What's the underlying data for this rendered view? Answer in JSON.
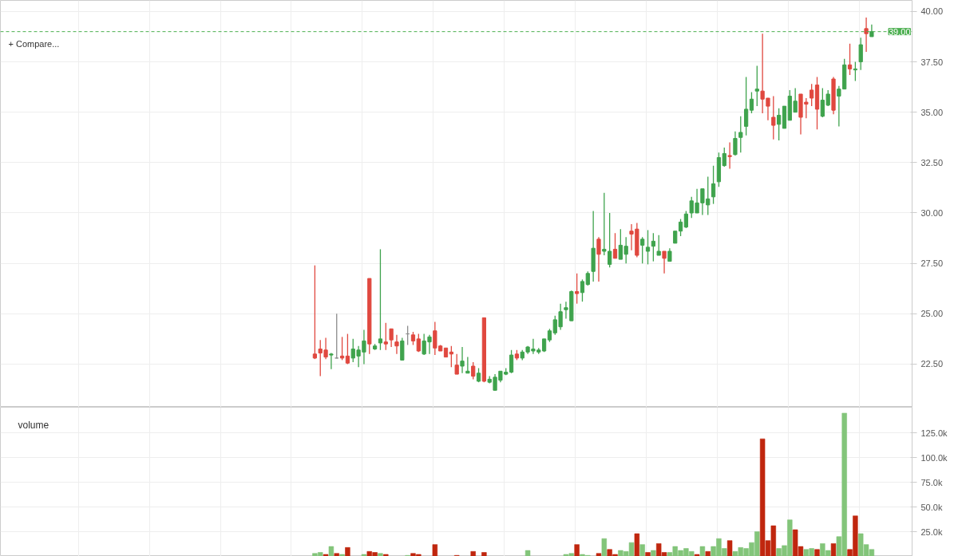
{
  "chart_data": [
    {
      "type": "candlestick",
      "annotations": [
        "+ Compare..."
      ],
      "tick_labels": "y",
      "grid": true,
      "categories": [
        null,
        null,
        null,
        null,
        null,
        null,
        null,
        null,
        null,
        null,
        null,
        null,
        null,
        null,
        null,
        null,
        null,
        null,
        null,
        null,
        null,
        null,
        null,
        null,
        null,
        null,
        null,
        null,
        null,
        null,
        null,
        null,
        null,
        null,
        null,
        null,
        null,
        null,
        null,
        null,
        null,
        null,
        null,
        null,
        null,
        null,
        null,
        null,
        null,
        null,
        null,
        null,
        null,
        null,
        null,
        null,
        null,
        null,
        null,
        null,
        null,
        null,
        null,
        null,
        null,
        null,
        null,
        null,
        null,
        null,
        null,
        null,
        null,
        null,
        null,
        null,
        null,
        null,
        null,
        null,
        null,
        null,
        null,
        null,
        null,
        null,
        null,
        null,
        null,
        null,
        null,
        null,
        null,
        null,
        null,
        null,
        null,
        null,
        null,
        null,
        null,
        null,
        null,
        null,
        null,
        null,
        null,
        null,
        null,
        null,
        null,
        null,
        null,
        null,
        null,
        null,
        null,
        null,
        null,
        null,
        null,
        null,
        null,
        null,
        null,
        null,
        null,
        null,
        null,
        null,
        null,
        null,
        null,
        null,
        null,
        null,
        null,
        null,
        null,
        null,
        null,
        null,
        null,
        null,
        null,
        null,
        null,
        null,
        null,
        null,
        null,
        null,
        null,
        null,
        null,
        null,
        null,
        null,
        null,
        null,
        null,
        null,
        null,
        null,
        null,
        null,
        null
      ],
      "ohlc": [
        null,
        null,
        null,
        null,
        null,
        null,
        null,
        null,
        null,
        null,
        null,
        null,
        null,
        null,
        null,
        null,
        null,
        null,
        null,
        null,
        null,
        null,
        null,
        null,
        null,
        null,
        null,
        null,
        null,
        null,
        null,
        null,
        null,
        null,
        null,
        null,
        null,
        null,
        null,
        null,
        null,
        null,
        null,
        null,
        null,
        null,
        null,
        null,
        null,
        null,
        null,
        null,
        null,
        null,
        null,
        null,
        null,
        [
          23.0,
          27.4,
          22.75,
          22.8
        ],
        [
          23.25,
          23.7,
          21.9,
          23.05
        ],
        [
          23.2,
          23.8,
          22.75,
          22.85
        ],
        [
          22.95,
          23.05,
          22.25,
          23.0
        ],
        [
          22.8,
          25.0,
          22.78,
          22.8
        ],
        [
          22.9,
          23.85,
          22.7,
          22.8
        ],
        [
          22.9,
          24.0,
          22.5,
          22.55
        ],
        [
          22.8,
          23.75,
          22.6,
          23.25
        ],
        [
          22.9,
          23.4,
          22.35,
          23.2
        ],
        [
          23.1,
          24.2,
          22.5,
          23.65
        ],
        [
          26.75,
          26.75,
          23.0,
          23.5
        ],
        [
          23.25,
          23.5,
          23.2,
          23.4
        ],
        [
          23.55,
          28.2,
          23.2,
          23.75
        ],
        [
          23.6,
          24.55,
          23.2,
          23.5
        ],
        [
          24.25,
          24.25,
          23.35,
          23.7
        ],
        [
          23.6,
          23.95,
          23.0,
          23.4
        ],
        [
          22.7,
          23.8,
          22.7,
          23.65
        ],
        [
          24.0,
          24.4,
          23.45,
          24.0
        ],
        [
          23.95,
          24.1,
          23.45,
          23.65
        ],
        [
          23.75,
          24.0,
          23.1,
          23.15
        ],
        [
          23.0,
          24.0,
          22.95,
          23.65
        ],
        [
          23.6,
          23.95,
          23.0,
          23.85
        ],
        [
          24.15,
          24.6,
          22.95,
          23.3
        ],
        [
          23.4,
          23.45,
          23.15,
          23.15
        ],
        [
          23.3,
          23.3,
          22.85,
          22.85
        ],
        [
          23.1,
          23.4,
          22.35,
          23.0
        ],
        [
          22.45,
          23.0,
          22.0,
          22.0
        ],
        [
          22.4,
          23.35,
          22.05,
          22.65
        ],
        [
          22.05,
          22.85,
          22.05,
          22.15
        ],
        [
          22.4,
          22.6,
          21.75,
          21.9
        ],
        [
          21.65,
          22.3,
          21.6,
          22.05
        ],
        [
          24.8,
          24.8,
          21.6,
          21.65
        ],
        [
          21.6,
          21.9,
          21.55,
          21.75
        ],
        [
          21.2,
          22.0,
          21.2,
          21.85
        ],
        [
          21.7,
          22.15,
          21.6,
          22.15
        ],
        [
          22.0,
          22.3,
          21.95,
          22.1
        ],
        [
          22.1,
          23.2,
          22.05,
          22.95
        ],
        [
          23.0,
          23.2,
          22.7,
          22.8
        ],
        [
          22.8,
          23.2,
          22.7,
          23.1
        ],
        [
          23.1,
          23.4,
          23.0,
          23.35
        ],
        [
          23.15,
          23.75,
          23.0,
          23.25
        ],
        [
          23.1,
          23.3,
          23.0,
          23.2
        ],
        [
          23.15,
          23.75,
          23.1,
          23.75
        ],
        [
          23.7,
          24.25,
          23.6,
          24.15
        ],
        [
          24.05,
          24.9,
          23.95,
          24.7
        ],
        [
          24.35,
          25.5,
          24.2,
          25.1
        ],
        [
          25.2,
          25.6,
          24.75,
          25.3
        ],
        [
          24.65,
          26.15,
          24.65,
          26.1
        ],
        [
          26.1,
          27.0,
          25.5,
          26.0
        ],
        [
          26.05,
          26.7,
          25.6,
          26.6
        ],
        [
          26.45,
          27.1,
          26.4,
          27.0
        ],
        [
          27.1,
          30.1,
          26.6,
          28.25
        ],
        [
          28.7,
          28.8,
          26.6,
          27.95
        ],
        [
          28.1,
          31.0,
          27.9,
          28.2
        ],
        [
          27.45,
          30.0,
          27.3,
          28.1
        ],
        [
          28.2,
          29.0,
          27.75,
          27.75
        ],
        [
          27.7,
          29.2,
          27.7,
          28.4
        ],
        [
          27.95,
          28.8,
          27.5,
          28.35
        ],
        [
          29.1,
          29.45,
          28.15,
          28.95
        ],
        [
          29.2,
          29.5,
          27.8,
          27.9
        ],
        [
          28.4,
          28.8,
          27.5,
          28.7
        ],
        [
          28.1,
          29.15,
          27.45,
          28.3
        ],
        [
          28.35,
          29.0,
          27.6,
          28.6
        ],
        [
          27.9,
          28.9,
          27.9,
          28.1
        ],
        [
          28.1,
          28.1,
          27.0,
          27.75
        ],
        [
          27.6,
          28.25,
          27.6,
          28.1
        ],
        [
          28.5,
          29.1,
          28.5,
          29.1
        ],
        [
          29.1,
          29.7,
          28.85,
          29.55
        ],
        [
          29.3,
          30.1,
          29.25,
          29.95
        ],
        [
          30.0,
          30.8,
          29.75,
          30.6
        ],
        [
          30.0,
          31.2,
          30.0,
          30.5
        ],
        [
          30.5,
          31.2,
          29.9,
          31.2
        ],
        [
          30.4,
          31.8,
          29.9,
          30.7
        ],
        [
          30.8,
          32.35,
          30.45,
          31.45
        ],
        [
          31.55,
          33.0,
          31.3,
          32.75
        ],
        [
          32.35,
          33.25,
          32.3,
          32.95
        ],
        [
          32.85,
          33.5,
          32.2,
          32.8
        ],
        [
          32.9,
          34.05,
          32.85,
          33.7
        ],
        [
          33.75,
          34.8,
          33.0,
          34.0
        ],
        [
          34.3,
          36.75,
          33.85,
          35.15
        ],
        [
          35.1,
          36.0,
          34.95,
          35.65
        ],
        [
          36.05,
          37.3,
          35.3,
          36.15
        ],
        [
          36.05,
          38.9,
          34.95,
          35.65
        ],
        [
          35.7,
          35.7,
          34.6,
          35.3
        ],
        [
          34.75,
          35.8,
          33.65,
          34.35
        ],
        [
          34.4,
          35.2,
          33.6,
          34.85
        ],
        [
          34.2,
          35.3,
          34.2,
          35.3
        ],
        [
          34.6,
          36.1,
          34.6,
          35.8
        ],
        [
          35.0,
          36.2,
          35.0,
          35.55
        ],
        [
          35.9,
          35.9,
          33.9,
          34.75
        ],
        [
          35.5,
          35.7,
          34.7,
          35.4
        ],
        [
          36.1,
          36.4,
          35.3,
          35.7
        ],
        [
          36.35,
          36.75,
          34.15,
          35.15
        ],
        [
          34.8,
          36.2,
          34.75,
          35.6
        ],
        [
          35.35,
          36.1,
          35.3,
          35.9
        ],
        [
          36.65,
          36.75,
          34.9,
          35.1
        ],
        [
          35.8,
          36.3,
          34.3,
          36.15
        ],
        [
          36.15,
          37.65,
          36.15,
          37.35
        ],
        [
          37.35,
          38.4,
          36.85,
          37.15
        ],
        [
          37.1,
          37.5,
          36.55,
          37.15
        ],
        [
          37.5,
          38.7,
          37.1,
          38.35
        ],
        [
          39.15,
          39.7,
          38.0,
          38.9
        ],
        [
          38.75,
          39.35,
          38.75,
          39.0
        ],
        null,
        null,
        null,
        null,
        null,
        null,
        null
      ],
      "colors": [
        null,
        null,
        null,
        null,
        null,
        null,
        null,
        null,
        null,
        null,
        null,
        null,
        null,
        null,
        null,
        null,
        null,
        null,
        null,
        null,
        null,
        null,
        null,
        null,
        null,
        null,
        null,
        null,
        null,
        null,
        null,
        null,
        null,
        null,
        null,
        null,
        null,
        null,
        null,
        null,
        null,
        null,
        null,
        null,
        null,
        null,
        null,
        null,
        null,
        null,
        null,
        null,
        null,
        null,
        null,
        null,
        null,
        "#e0483f",
        "#e0483f",
        "#e0483f",
        "#3fa34d",
        "#8c8c8c",
        "#e0483f",
        "#e0483f",
        "#3fa34d",
        "#3fa34d",
        "#3fa34d",
        "#e0483f",
        "#3fa34d",
        "#3fa34d",
        "#e0483f",
        "#e0483f",
        "#e0483f",
        "#3fa34d",
        "#8c8c8c",
        "#e0483f",
        "#e0483f",
        "#3fa34d",
        "#3fa34d",
        "#e0483f",
        "#e0483f",
        "#e0483f",
        "#e0483f",
        "#e0483f",
        "#3fa34d",
        "#3fa34d",
        "#e0483f",
        "#3fa34d",
        "#e0483f",
        "#3fa34d",
        "#3fa34d",
        "#3fa34d",
        "#3fa34d",
        "#3fa34d",
        "#e0483f",
        "#3fa34d",
        "#3fa34d",
        "#3fa34d",
        "#3fa34d",
        "#3fa34d",
        "#3fa34d",
        "#3fa34d",
        "#3fa34d",
        "#3fa34d",
        "#3fa34d",
        "#e0483f",
        "#3fa34d",
        "#3fa34d",
        "#3fa34d",
        "#e0483f",
        "#3fa34d",
        "#3fa34d",
        "#e0483f",
        "#3fa34d",
        "#3fa34d",
        "#e0483f",
        "#e0483f",
        "#3fa34d",
        "#3fa34d",
        "#3fa34d",
        "#3fa34d",
        "#e0483f",
        "#3fa34d",
        "#3fa34d",
        "#3fa34d",
        "#3fa34d",
        "#3fa34d",
        "#3fa34d",
        "#3fa34d",
        "#3fa34d",
        "#3fa34d",
        "#3fa34d",
        "#3fa34d",
        "#e0483f",
        "#3fa34d",
        "#3fa34d",
        "#3fa34d",
        "#3fa34d",
        "#3fa34d",
        "#e0483f",
        "#e0483f",
        "#e0483f",
        "#3fa34d",
        "#3fa34d",
        "#3fa34d",
        "#3fa34d",
        "#e0483f",
        "#e0483f",
        "#e0483f",
        "#e0483f",
        "#3fa34d",
        "#3fa34d",
        "#e0483f",
        "#3fa34d",
        "#3fa34d",
        "#e0483f",
        "#3fa34d",
        "#3fa34d",
        "#e0483f",
        "#3fa34d",
        null,
        null,
        null,
        null,
        null,
        null,
        null
      ],
      "ylim": [
        20.36,
        40.55
      ],
      "yticks": [
        {
          "value": 22.5,
          "label": "22.50"
        },
        {
          "value": 25,
          "label": "25.00"
        },
        {
          "value": 27.5,
          "label": "27.50"
        },
        {
          "value": 30,
          "label": "30.00"
        },
        {
          "value": 32.5,
          "label": "32.50"
        },
        {
          "value": 35,
          "label": "35.00"
        },
        {
          "value": 37.5,
          "label": "37.50"
        },
        {
          "value": 40,
          "label": "40.00"
        }
      ],
      "ref_lines": [
        {
          "axis": "y",
          "value": 39,
          "label": "39.00",
          "color": "#4caf50",
          "line_style": "dashed"
        }
      ]
    },
    {
      "type": "bar",
      "title": "volume",
      "tick_labels": "y",
      "grid": true,
      "categories": [
        null,
        null,
        null,
        null,
        null,
        null,
        null,
        null,
        null,
        null,
        null,
        null,
        null,
        null,
        null,
        null,
        null,
        null,
        null,
        null,
        null,
        null,
        null,
        null,
        null,
        null,
        null,
        null,
        null,
        null,
        null,
        null,
        null,
        null,
        null,
        null,
        null,
        null,
        null,
        null,
        null,
        null,
        null,
        null,
        null,
        null,
        null,
        null,
        null,
        null,
        null,
        null,
        null,
        null,
        null,
        null,
        null,
        null,
        null,
        null,
        null,
        null,
        null,
        null,
        null,
        null,
        null,
        null,
        null,
        null,
        null,
        null,
        null,
        null,
        null,
        null,
        null,
        null,
        null,
        null,
        null,
        null,
        null,
        null,
        null,
        null,
        null,
        null,
        null,
        null,
        null,
        null,
        null,
        null,
        null,
        null,
        null,
        null,
        null,
        null,
        null,
        null,
        null,
        null,
        null,
        null,
        null,
        null,
        null,
        null,
        null,
        null,
        null,
        null,
        null,
        null,
        null,
        null,
        null,
        null,
        null,
        null,
        null,
        null,
        null,
        null,
        null,
        null,
        null,
        null,
        null,
        null,
        null,
        null,
        null,
        null,
        null,
        null,
        null,
        null,
        null,
        null,
        null,
        null,
        null,
        null,
        null,
        null,
        null,
        null,
        null,
        null,
        null,
        null,
        null,
        null,
        null,
        null,
        null,
        null,
        null,
        null,
        null,
        null,
        null,
        null,
        null
      ],
      "values": [
        null,
        null,
        null,
        null,
        null,
        null,
        null,
        null,
        null,
        null,
        null,
        null,
        null,
        null,
        null,
        null,
        null,
        null,
        null,
        null,
        null,
        null,
        null,
        null,
        null,
        null,
        null,
        null,
        null,
        null,
        null,
        null,
        null,
        null,
        null,
        null,
        null,
        null,
        null,
        null,
        null,
        null,
        null,
        null,
        null,
        null,
        null,
        null,
        null,
        null,
        null,
        null,
        null,
        null,
        null,
        null,
        null,
        3000,
        4000,
        2000,
        10000,
        3000,
        2000,
        9000,
        null,
        null,
        2000,
        5000,
        4000,
        3000,
        2000,
        null,
        null,
        null,
        1000,
        3000,
        2000,
        null,
        null,
        12000,
        null,
        null,
        null,
        1000,
        null,
        null,
        5000,
        null,
        4000,
        null,
        null,
        null,
        null,
        null,
        null,
        null,
        6000,
        null,
        null,
        null,
        null,
        null,
        null,
        2000,
        3000,
        12000,
        2000,
        1000,
        null,
        3000,
        18000,
        7000,
        2000,
        6000,
        5000,
        14000,
        23000,
        12000,
        4000,
        6000,
        13000,
        4000,
        4000,
        10000,
        6000,
        8000,
        5000,
        2000,
        10000,
        5000,
        10000,
        18000,
        8000,
        16000,
        5000,
        9000,
        8000,
        14000,
        25000,
        119000,
        16000,
        31000,
        8000,
        11000,
        37000,
        27000,
        10000,
        7000,
        8000,
        7000,
        13000,
        6000,
        13000,
        20000,
        145000,
        7000,
        41000,
        23000,
        12000,
        7000,
        null,
        null,
        null,
        null,
        null,
        null,
        null
      ],
      "colors": [
        null,
        null,
        null,
        null,
        null,
        null,
        null,
        null,
        null,
        null,
        null,
        null,
        null,
        null,
        null,
        null,
        null,
        null,
        null,
        null,
        null,
        null,
        null,
        null,
        null,
        null,
        null,
        null,
        null,
        null,
        null,
        null,
        null,
        null,
        null,
        null,
        null,
        null,
        null,
        null,
        null,
        null,
        null,
        null,
        null,
        null,
        null,
        null,
        null,
        null,
        null,
        null,
        null,
        null,
        null,
        null,
        null,
        "#83c57a",
        "#83c57a",
        "#c0260e",
        "#83c57a",
        "#c0260e",
        "#83c57a",
        "#c0260e",
        null,
        null,
        "#83c57a",
        "#c0260e",
        "#c0260e",
        "#83c57a",
        "#c0260e",
        null,
        null,
        null,
        "#83c57a",
        "#c0260e",
        "#c0260e",
        null,
        null,
        "#c0260e",
        null,
        null,
        null,
        "#c0260e",
        null,
        null,
        "#c0260e",
        null,
        "#c0260e",
        null,
        null,
        null,
        null,
        null,
        null,
        null,
        "#83c57a",
        null,
        null,
        null,
        null,
        null,
        null,
        "#83c57a",
        "#83c57a",
        "#c0260e",
        "#83c57a",
        "#83c57a",
        null,
        "#c0260e",
        "#83c57a",
        "#c0260e",
        "#c0260e",
        "#83c57a",
        "#83c57a",
        "#83c57a",
        "#c0260e",
        "#83c57a",
        "#c0260e",
        "#83c57a",
        "#c0260e",
        "#c0260e",
        "#83c57a",
        "#83c57a",
        "#83c57a",
        "#83c57a",
        "#83c57a",
        "#c0260e",
        "#83c57a",
        "#c0260e",
        "#83c57a",
        "#83c57a",
        "#83c57a",
        "#c0260e",
        "#83c57a",
        "#83c57a",
        "#83c57a",
        "#83c57a",
        "#83c57a",
        "#c0260e",
        "#c0260e",
        "#c0260e",
        "#83c57a",
        "#83c57a",
        "#83c57a",
        "#c0260e",
        "#c0260e",
        "#83c57a",
        "#83c57a",
        "#c0260e",
        "#83c57a",
        "#83c57a",
        "#c0260e",
        "#83c57a",
        "#83c57a",
        "#c0260e",
        "#c0260e",
        "#83c57a",
        "#83c57a",
        "#83c57a",
        null,
        null,
        null,
        null,
        null,
        null,
        null
      ],
      "ylim": [
        0,
        151000
      ],
      "yticks": [
        {
          "value": 25000,
          "label": "25.0k"
        },
        {
          "value": 50000,
          "label": "50.0k"
        },
        {
          "value": 75000,
          "label": "75.0k"
        },
        {
          "value": 100000,
          "label": "100.0k"
        },
        {
          "value": 125000,
          "label": "125.0k"
        }
      ]
    }
  ]
}
